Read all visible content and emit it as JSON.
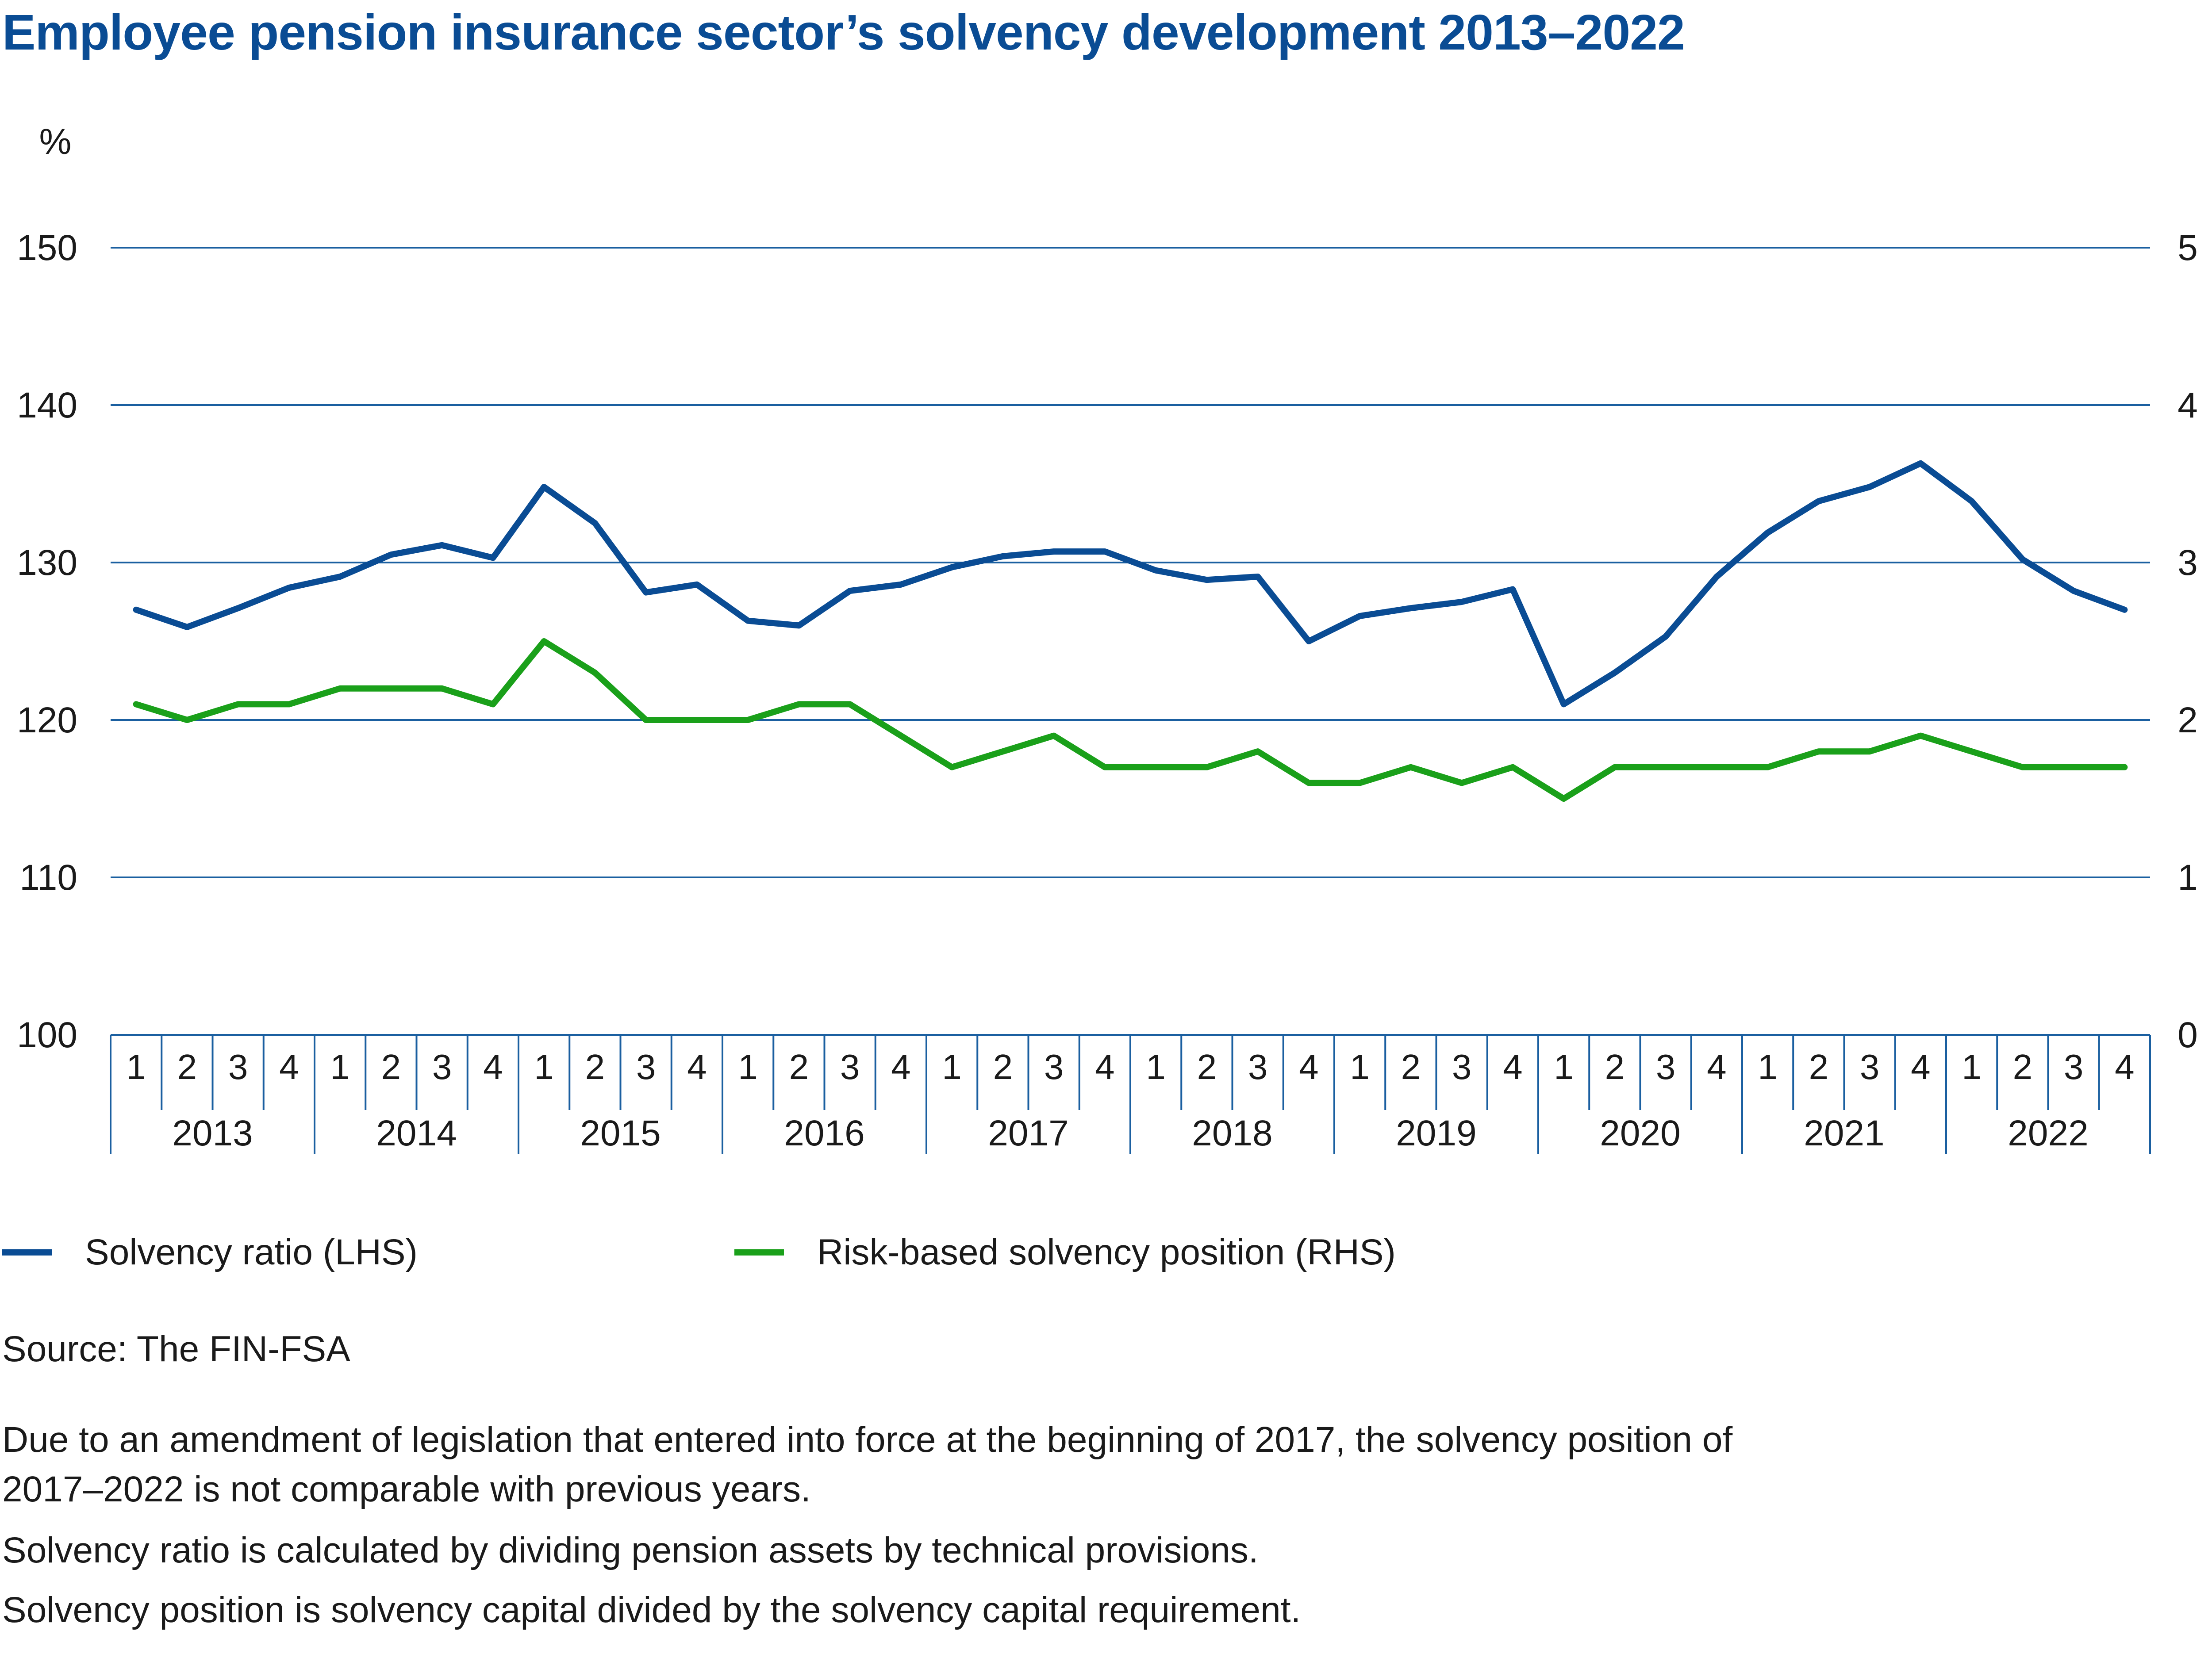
{
  "chart_data": {
    "type": "line",
    "title": "Employee pension insurance sector’s solvency development 2013–2022",
    "unit_label": "%",
    "y_left": {
      "min": 100,
      "max": 150,
      "ticks": [
        "150",
        "140",
        "130",
        "120",
        "110",
        "100"
      ]
    },
    "y_right": {
      "min": 0,
      "max": 5,
      "ticks": [
        "5",
        "4",
        "3",
        "2",
        "1",
        "0"
      ]
    },
    "quarter_labels": [
      "1",
      "2",
      "3",
      "4"
    ],
    "years": [
      "2013",
      "2014",
      "2015",
      "2016",
      "2017",
      "2018",
      "2019",
      "2020",
      "2021",
      "2022"
    ],
    "series": [
      {
        "name": "Solvency ratio (LHS)",
        "axis": "left",
        "color": "#0a4c94",
        "values": [
          127,
          125.9,
          127.1,
          128.4,
          129.1,
          130.5,
          131.1,
          130.3,
          134.8,
          132.5,
          128.1,
          128.6,
          126.3,
          126,
          128.2,
          128.6,
          129.7,
          130.4,
          130.7,
          130.7,
          129.5,
          128.9,
          129.1,
          125,
          126.6,
          127.1,
          127.5,
          128.3,
          121,
          123,
          125.3,
          129.1,
          131.9,
          133.9,
          134.8,
          136.3,
          133.9,
          130.2,
          128.2,
          127
        ]
      },
      {
        "name": "Risk-based solvency position (RHS)",
        "axis": "right",
        "color": "#1aa01a",
        "values": [
          2.1,
          2.0,
          2.1,
          2.1,
          2.2,
          2.2,
          2.2,
          2.1,
          2.5,
          2.3,
          2.0,
          2.0,
          2.0,
          2.1,
          2.1,
          1.9,
          1.7,
          1.8,
          1.9,
          1.7,
          1.7,
          1.7,
          1.8,
          1.6,
          1.6,
          1.7,
          1.6,
          1.7,
          1.5,
          1.7,
          1.7,
          1.7,
          1.7,
          1.8,
          1.8,
          1.9,
          1.8,
          1.7,
          1.7,
          1.7
        ]
      }
    ]
  },
  "legend": {
    "solvency_ratio": "Solvency ratio (LHS)",
    "risk_based": "Risk-based solvency position (RHS)"
  },
  "notes": {
    "source": "Source: The FIN-FSA",
    "amendment_line1": "Due to an amendment of legislation that entered into force at the beginning of 2017, the solvency position of",
    "amendment_line2": "2017–2022 is not comparable with previous years.",
    "ratio_def": "Solvency ratio is calculated by dividing pension assets by technical provisions.",
    "position_def": "Solvency position is solvency capital divided by the solvency capital requirement."
  },
  "colors": {
    "title": "#0a4c94",
    "gridline": "#1a5fa0",
    "solvency_ratio": "#0a4c94",
    "risk_based": "#1aa01a"
  }
}
